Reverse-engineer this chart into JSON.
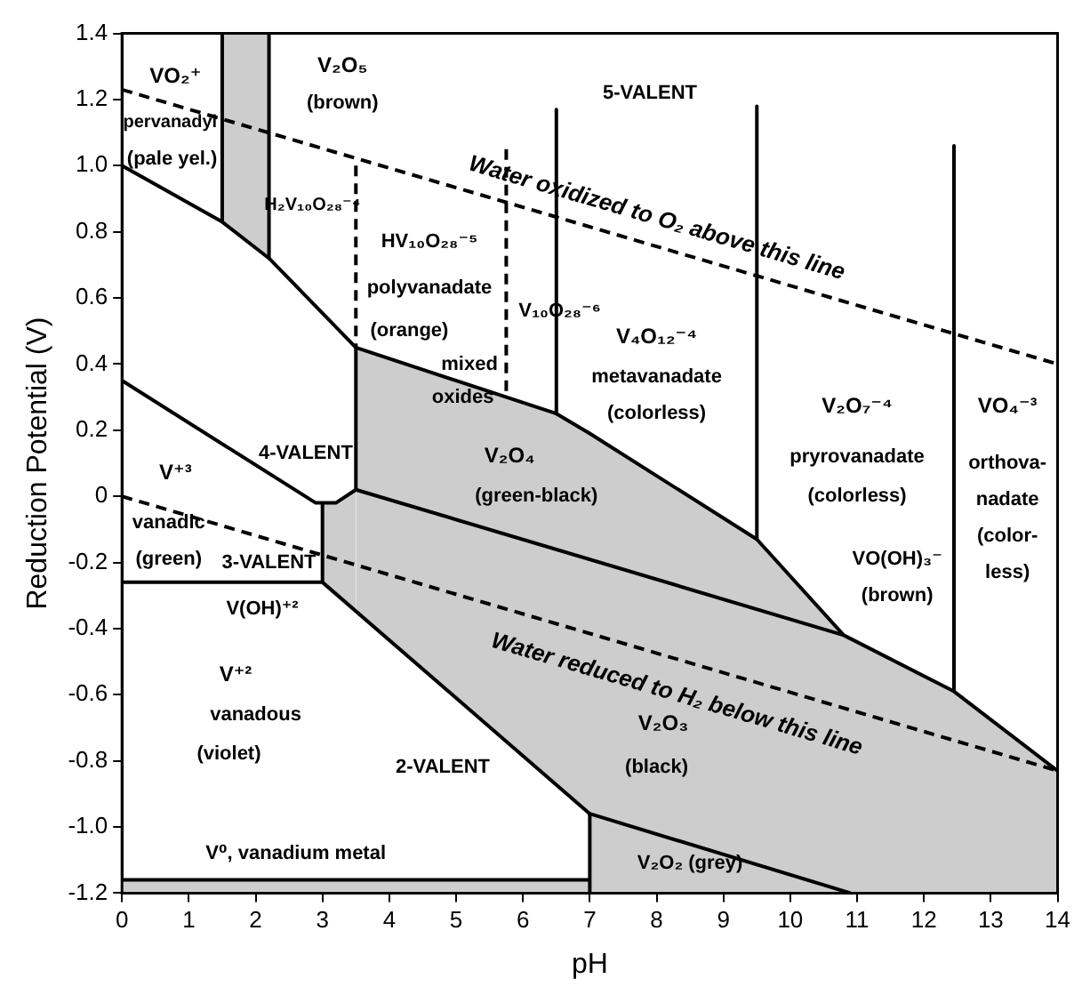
{
  "chart_data": {
    "type": "line",
    "xlabel": "pH",
    "ylabel": "Reduction Potential (V)",
    "xlim": [
      0,
      14
    ],
    "xticks": [
      0,
      1,
      2,
      3,
      4,
      5,
      6,
      7,
      8,
      9,
      10,
      11,
      12,
      13,
      14
    ],
    "ylim": [
      -1.2,
      1.4
    ],
    "yticks": [
      {
        "value": -1.2,
        "label": "-1.2"
      },
      {
        "value": -1,
        "label": "-1.0"
      },
      -0.8,
      -0.6,
      -0.4,
      -0.2,
      0,
      0.2,
      0.4,
      0.6,
      0.8,
      {
        "value": 1,
        "label": "1.0"
      },
      1.2,
      1.4
    ],
    "grid": false,
    "legend": false,
    "marker": "none",
    "series": [
      {
        "color": "#000000",
        "x": [
          0,
          1.5,
          2.2,
          3.5,
          3.5,
          6.5,
          7.0,
          7.0,
          9.5,
          10.8,
          12.45,
          14
        ],
        "values": [
          1.0,
          0.83,
          0.72,
          0.45,
          0.45,
          0.25,
          0.19,
          0.19,
          -0.13,
          -0.42,
          -0.59,
          -0.83
        ],
        "lower": [
          null,
          0.83,
          0.72,
          null,
          -0.35,
          -0.87,
          -0.96,
          -1.2,
          -1.2,
          -1.2,
          -1.2,
          -1.2
        ],
        "upper": [
          null,
          1.4,
          1.4,
          null,
          0.45,
          0.25,
          0.19,
          0.19,
          -0.13,
          -0.42,
          -0.59,
          -0.83
        ]
      },
      {
        "color": "#000000",
        "x": [
          0,
          2.9,
          3.0,
          3.2,
          3.5
        ],
        "values": [
          0.35,
          -0.02,
          -0.02,
          -0.02,
          0.02
        ],
        "lower": [
          null,
          null,
          -0.26,
          -0.3,
          -0.35
        ],
        "upper": [
          null,
          null,
          -0.02,
          -0.02,
          0.02
        ]
      },
      {
        "color": "#000000",
        "x": [
          3.5,
          10.8
        ],
        "values": [
          0.02,
          -0.42
        ]
      },
      {
        "color": "#000000",
        "x": [
          0,
          3.0,
          3.0
        ],
        "values": [
          -0.26,
          -0.26,
          -0.02
        ]
      },
      {
        "color": "#000000",
        "x": [
          3.0,
          7.0
        ],
        "values": [
          -0.26,
          -0.96
        ]
      },
      {
        "color": "#000000",
        "x": [
          7.0,
          7.0,
          10.9
        ],
        "values": [
          -1.2,
          -0.96,
          -1.2
        ]
      },
      {
        "color": "#000000",
        "x": [
          0,
          7.0
        ],
        "values": [
          -1.16,
          -1.16
        ],
        "lower": [
          -1.2,
          -1.2
        ],
        "upper": [
          -1.16,
          -1.16
        ]
      },
      {
        "color": "#000000",
        "x": [
          1.5,
          1.5
        ],
        "values": [
          1.4,
          0.83
        ]
      },
      {
        "color": "#000000",
        "x": [
          2.2,
          2.2
        ],
        "values": [
          1.4,
          0.72
        ]
      },
      {
        "color": "#000000",
        "x": [
          3.5,
          3.5
        ],
        "values": [
          0.45,
          0.02
        ]
      },
      {
        "color": "#000000",
        "x": [
          6.5,
          6.5
        ],
        "values": [
          1.17,
          0.25
        ]
      },
      {
        "color": "#000000",
        "x": [
          9.5,
          9.5
        ],
        "values": [
          1.18,
          -0.13
        ]
      },
      {
        "color": "#000000",
        "x": [
          12.45,
          12.45
        ],
        "values": [
          1.06,
          -0.59
        ]
      },
      {
        "color": "#000000",
        "line_style": "dashed",
        "x": [
          3.5,
          3.5
        ],
        "values": [
          1.0,
          0.45
        ]
      },
      {
        "color": "#000000",
        "line_style": "dashed",
        "x": [
          5.75,
          5.75
        ],
        "values": [
          1.05,
          0.3
        ]
      },
      {
        "color": "#000000",
        "line_style": "dashed",
        "x": [
          0,
          14
        ],
        "values": [
          1.23,
          0.4
        ]
      },
      {
        "color": "#000000",
        "line_style": "dashed",
        "x": [
          0,
          14
        ],
        "values": [
          0,
          -0.83
        ]
      }
    ],
    "annotations": [
      "VO₂⁺",
      "pervanadyl",
      "(pale yel.)",
      "V₂O₅",
      "(brown)",
      "H₂V₁₀O₂₈⁻⁴",
      "HV₁₀O₂₈⁻⁵",
      "polyvanadate",
      "(orange)",
      "mixed",
      "oxides",
      "V₁₀O₂₈⁻⁶",
      "5-VALENT",
      "V₄O₁₂⁻⁴",
      "metavanadate",
      "(colorless)",
      "V₂O₇⁻⁴",
      "pryrovanadate",
      "(colorless)",
      "VO₄⁻³",
      "orthova-",
      "nadate",
      "(color-",
      "less)",
      "VO(OH)₃⁻",
      "(brown)",
      "4-VALENT",
      "V₂O₄",
      "(green-black)",
      "V⁺³",
      "vanadic",
      "(green)",
      "3-VALENT",
      "V(OH)⁺²",
      "V⁺²",
      "vanadous",
      "(violet)",
      "2-VALENT",
      "V₂O₃",
      "(black)",
      "V₂O₂ (grey)",
      "V⁰, vanadium metal",
      "Water oxidized to O₂ above this line",
      "Water reduced to H₂ below this line"
    ]
  }
}
